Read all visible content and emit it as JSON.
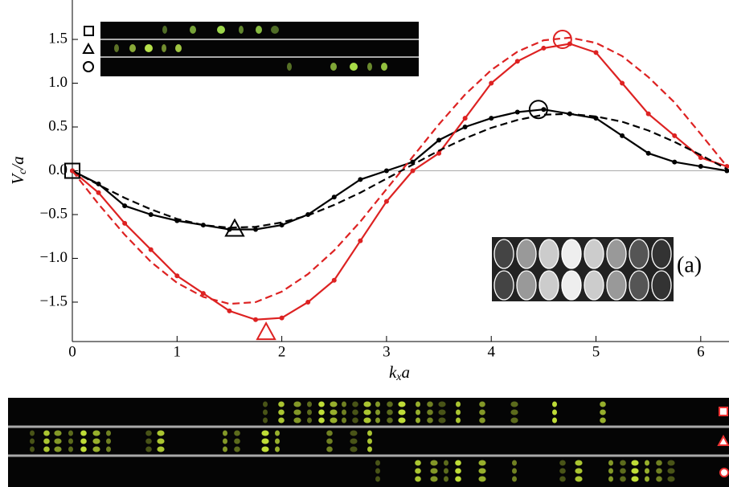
{
  "chart_data": {
    "type": "line",
    "xlabel": [
      "k",
      "x",
      "a"
    ],
    "ylabel": [
      "V",
      "c",
      "/a"
    ],
    "annotation": "(a)",
    "x": [
      0,
      0.25,
      0.5,
      0.75,
      1,
      1.25,
      1.5,
      1.75,
      2,
      2.25,
      2.5,
      2.75,
      3,
      3.25,
      3.5,
      3.75,
      4,
      4.25,
      4.5,
      4.75,
      5,
      5.25,
      5.5,
      5.75,
      6,
      6.25
    ],
    "series": [
      {
        "color": "#000000",
        "style": "solid",
        "marker": true,
        "values": [
          0,
          -0.15,
          -0.4,
          -0.5,
          -0.57,
          -0.62,
          -0.67,
          -0.67,
          -0.62,
          -0.5,
          -0.3,
          -0.1,
          0.0,
          0.1,
          0.35,
          0.5,
          0.6,
          0.67,
          0.7,
          0.65,
          0.6,
          0.4,
          0.2,
          0.1,
          0.05,
          0.0
        ]
      },
      {
        "color": "#dd2222",
        "style": "solid",
        "marker": true,
        "values": [
          0,
          -0.25,
          -0.6,
          -0.9,
          -1.2,
          -1.4,
          -1.6,
          -1.7,
          -1.68,
          -1.5,
          -1.25,
          -0.8,
          -0.35,
          0,
          0.2,
          0.6,
          1.0,
          1.25,
          1.4,
          1.45,
          1.35,
          1.0,
          0.65,
          0.4,
          0.15,
          0.05
        ]
      },
      {
        "color": "#000000",
        "style": "dashed",
        "marker": false,
        "values": [
          0,
          -0.16,
          -0.31,
          -0.44,
          -0.55,
          -0.62,
          -0.65,
          -0.64,
          -0.59,
          -0.51,
          -0.39,
          -0.25,
          -0.09,
          0.07,
          0.23,
          0.37,
          0.49,
          0.58,
          0.64,
          0.65,
          0.62,
          0.56,
          0.46,
          0.33,
          0.18,
          0.02
        ]
      },
      {
        "color": "#dd2222",
        "style": "dashed",
        "marker": false,
        "values": [
          0,
          -0.38,
          -0.73,
          -1.04,
          -1.28,
          -1.44,
          -1.52,
          -1.5,
          -1.38,
          -1.18,
          -0.91,
          -0.58,
          -0.21,
          0.16,
          0.53,
          0.87,
          1.15,
          1.36,
          1.49,
          1.52,
          1.46,
          1.31,
          1.07,
          0.78,
          0.42,
          0.05
        ]
      }
    ],
    "highlight_points": [
      {
        "x": 0,
        "y": 0,
        "shape": "square",
        "color": "#000000"
      },
      {
        "x": 1.55,
        "y": -0.67,
        "shape": "triangle",
        "color": "#000000"
      },
      {
        "x": 4.45,
        "y": 0.7,
        "shape": "circle",
        "color": "#000000"
      },
      {
        "x": 1.85,
        "y": -1.85,
        "shape": "triangle",
        "color": "#dd2222"
      },
      {
        "x": 4.68,
        "y": 1.5,
        "shape": "circle",
        "color": "#dd2222"
      }
    ],
    "xlim": [
      0,
      6.27
    ],
    "ylim": [
      -1.95,
      1.95
    ],
    "xticks": [
      0,
      1,
      2,
      3,
      4,
      5,
      6
    ],
    "yticks": [
      {
        "value": -1.5,
        "label": "−1.5"
      },
      {
        "value": -1,
        "label": "−1.0"
      },
      {
        "value": -0.5,
        "label": "−0.5"
      },
      {
        "value": 0,
        "label": "0.0"
      },
      0.5,
      {
        "value": 1,
        "label": "1.0"
      },
      1.5
    ],
    "zero_line": true
  }
}
